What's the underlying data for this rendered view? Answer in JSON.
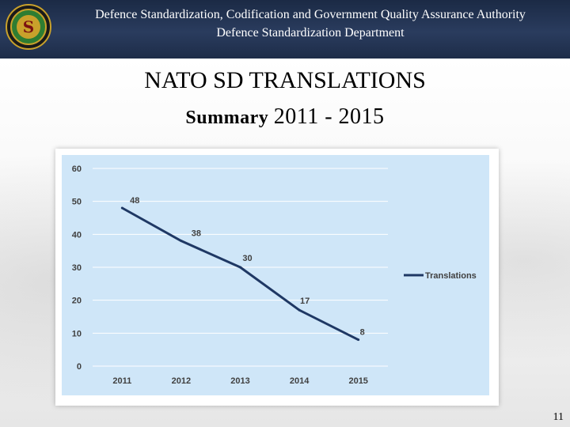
{
  "header": {
    "line1": "Defence Standardization, Codification and Government Quality Assurance Authority",
    "line2": "Defence Standardization Department",
    "emblem_icon": "authority-emblem-icon",
    "background_color": "#1b2a45"
  },
  "slide": {
    "title": "NATO SD TRANSLATIONS",
    "subtitle_prefix": "Summary ",
    "subtitle_years": "2011 - 2015",
    "page_number": "11"
  },
  "chart_data": {
    "type": "line",
    "categories": [
      "2011",
      "2012",
      "2013",
      "2014",
      "2015"
    ],
    "series": [
      {
        "name": "Translations",
        "values": [
          48,
          38,
          30,
          17,
          8
        ],
        "color": "#1f3864"
      }
    ],
    "data_labels": [
      "48",
      "38",
      "30",
      "17",
      "8"
    ],
    "ylim": [
      0,
      60
    ],
    "yticks": [
      0,
      10,
      20,
      30,
      40,
      50,
      60
    ],
    "grid": true,
    "legend": "right",
    "plot_background": "#cfe6f8",
    "title": "",
    "xlabel": "",
    "ylabel": ""
  }
}
